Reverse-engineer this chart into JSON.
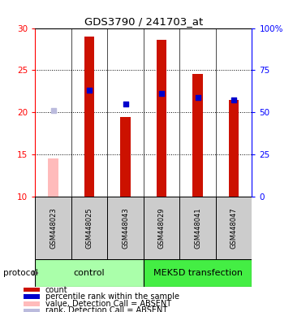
{
  "title": "GDS3790 / 241703_at",
  "samples": [
    "GSM448023",
    "GSM448025",
    "GSM448043",
    "GSM448029",
    "GSM448041",
    "GSM448047"
  ],
  "count_values": [
    null,
    29.0,
    19.4,
    28.6,
    24.6,
    21.5
  ],
  "count_absent": [
    14.5,
    null,
    null,
    null,
    null,
    null
  ],
  "rank_values": [
    null,
    22.6,
    21.0,
    22.2,
    21.8,
    21.5
  ],
  "rank_absent": [
    20.2,
    null,
    null,
    null,
    null,
    null
  ],
  "ylim_left": [
    10,
    30
  ],
  "ylim_right": [
    0,
    100
  ],
  "yticks_left": [
    10,
    15,
    20,
    25,
    30
  ],
  "yticks_right": [
    0,
    25,
    50,
    75,
    100
  ],
  "ytick_labels_left": [
    "10",
    "15",
    "20",
    "25",
    "30"
  ],
  "ytick_labels_right": [
    "0",
    "25",
    "50",
    "75",
    "100%"
  ],
  "bar_color_present": "#cc1100",
  "bar_color_absent": "#ffbbbb",
  "rank_color_present": "#0000cc",
  "rank_color_absent": "#bbbbdd",
  "bar_width": 0.28,
  "rank_marker_size": 5,
  "control_color": "#aaffaa",
  "mek5d_color": "#44ee44",
  "sample_box_color": "#cccccc",
  "legend_items": [
    {
      "label": "count",
      "color": "#cc1100"
    },
    {
      "label": "percentile rank within the sample",
      "color": "#0000cc"
    },
    {
      "label": "value, Detection Call = ABSENT",
      "color": "#ffbbbb"
    },
    {
      "label": "rank, Detection Call = ABSENT",
      "color": "#bbbbdd"
    }
  ],
  "fig_w": 3.61,
  "fig_h": 3.84,
  "dpi": 100
}
